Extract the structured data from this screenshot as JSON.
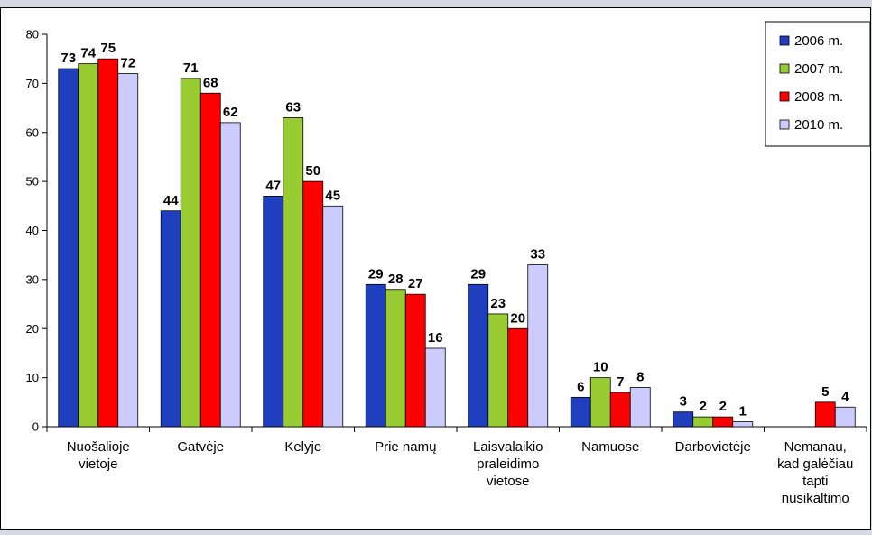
{
  "chart_data": {
    "type": "bar",
    "title": "",
    "xlabel": "",
    "ylabel": "",
    "ylim": [
      0,
      80
    ],
    "yticks": [
      0,
      10,
      20,
      30,
      40,
      50,
      60,
      70,
      80
    ],
    "grid": false,
    "legend_position": "top-right",
    "categories": [
      [
        "Nuošalioje",
        "vietoje"
      ],
      [
        "Gatvėje"
      ],
      [
        "Kelyje"
      ],
      [
        "Prie namų"
      ],
      [
        "Laisvalaikio",
        "praleidimo",
        "vietose"
      ],
      [
        "Namuose"
      ],
      [
        "Darbovietėje"
      ],
      [
        "Nemanau,",
        "kad galėčiau",
        "tapti",
        "nusikaltimo"
      ]
    ],
    "series": [
      {
        "name": "2006 m.",
        "color": "#1f3fbf",
        "values": [
          73,
          44,
          47,
          29,
          29,
          6,
          3,
          null
        ]
      },
      {
        "name": "2007 m.",
        "color": "#99cc33",
        "values": [
          74,
          71,
          63,
          28,
          23,
          10,
          2,
          null
        ]
      },
      {
        "name": "2008 m.",
        "color": "#ff0000",
        "values": [
          75,
          68,
          50,
          27,
          20,
          7,
          2,
          5
        ]
      },
      {
        "name": "2010 m.",
        "color": "#ccccff",
        "values": [
          72,
          62,
          45,
          16,
          33,
          8,
          1,
          4
        ]
      }
    ]
  }
}
